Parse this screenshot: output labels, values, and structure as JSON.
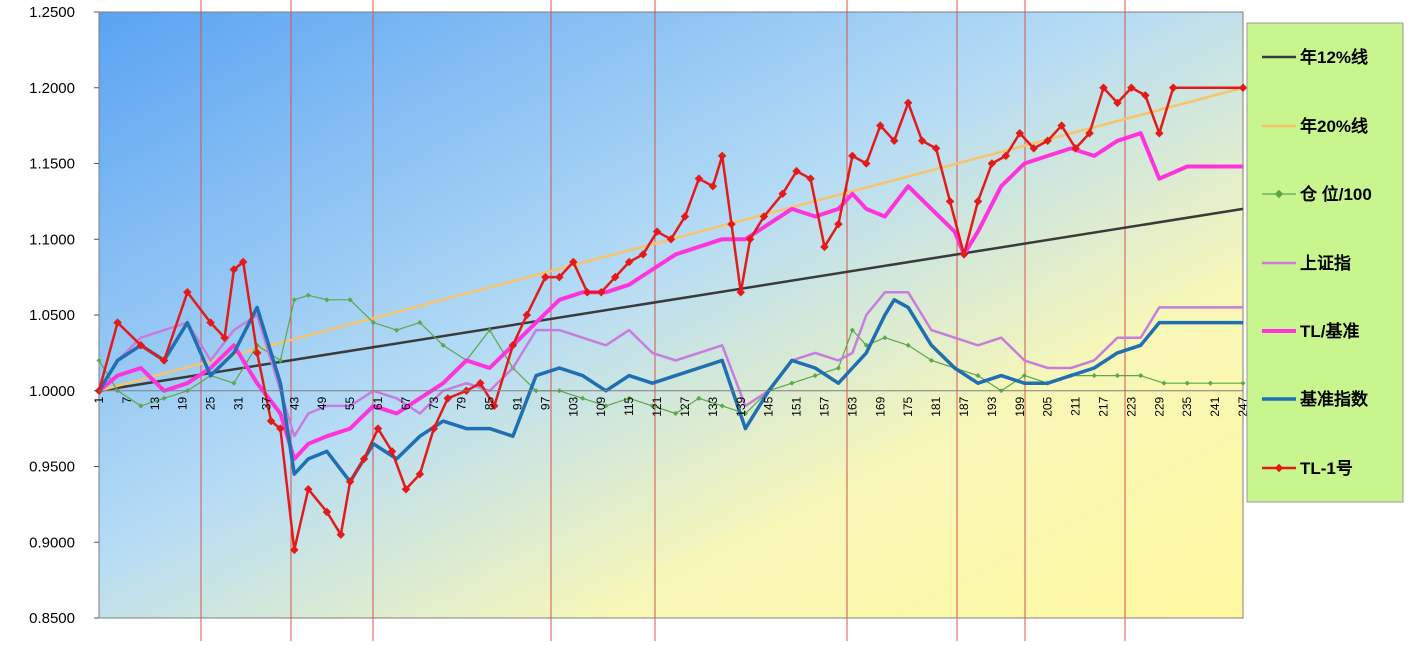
{
  "chart_data": {
    "type": "line",
    "title": "",
    "xlabel": "",
    "ylabel": "",
    "xlim": [
      1,
      247
    ],
    "ylim": [
      0.85,
      1.25
    ],
    "y_ticks": [
      "0.8500",
      "0.9000",
      "0.9500",
      "1.0000",
      "1.0500",
      "1.1000",
      "1.1500",
      "1.2000",
      "1.2500"
    ],
    "x_ticks": [
      "1",
      "7",
      "13",
      "19",
      "25",
      "31",
      "37",
      "43",
      "49",
      "55",
      "61",
      "67",
      "73",
      "79",
      "85",
      "91",
      "97",
      "103",
      "109",
      "115",
      "121",
      "127",
      "133",
      "139",
      "145",
      "151",
      "157",
      "163",
      "169",
      "175",
      "181",
      "187",
      "193",
      "199",
      "205",
      "211",
      "217",
      "223",
      "229",
      "235",
      "241",
      "247"
    ],
    "grid": "vertical red lines",
    "legend_position": "right",
    "background": "gradient blue (top-left) to yellow (bottom-right)",
    "series": [
      {
        "name": "年12%线",
        "color": "#3a3a3a",
        "x": [
          1,
          247
        ],
        "y": [
          1.0,
          1.12
        ]
      },
      {
        "name": "年20%线",
        "color": "#f7c46c",
        "x": [
          1,
          247
        ],
        "y": [
          1.0,
          1.2
        ]
      },
      {
        "name": "仓 位/100",
        "color": "#5aa84a",
        "x": [
          1,
          5,
          10,
          15,
          20,
          25,
          30,
          35,
          40,
          43,
          46,
          50,
          55,
          60,
          65,
          70,
          75,
          80,
          85,
          90,
          95,
          100,
          105,
          110,
          115,
          120,
          125,
          130,
          135,
          140,
          145,
          150,
          155,
          160,
          163,
          166,
          170,
          175,
          180,
          185,
          190,
          195,
          200,
          205,
          210,
          215,
          220,
          225,
          230,
          235,
          240,
          247
        ],
        "y": [
          1.02,
          1.0,
          0.99,
          0.995,
          1.0,
          1.01,
          1.005,
          1.03,
          1.02,
          1.06,
          1.063,
          1.06,
          1.06,
          1.045,
          1.04,
          1.045,
          1.03,
          1.02,
          1.04,
          1.015,
          1.0,
          1.0,
          0.995,
          0.99,
          0.995,
          0.99,
          0.985,
          0.995,
          0.99,
          0.985,
          1.0,
          1.005,
          1.01,
          1.015,
          1.04,
          1.03,
          1.035,
          1.03,
          1.02,
          1.015,
          1.01,
          1.0,
          1.01,
          1.005,
          1.01,
          1.01,
          1.01,
          1.01,
          1.005,
          1.005,
          1.005,
          1.005
        ]
      },
      {
        "name": "上证指",
        "color": "#c77ddd",
        "x": [
          1,
          5,
          10,
          15,
          20,
          25,
          30,
          35,
          40,
          43,
          46,
          50,
          55,
          60,
          65,
          70,
          75,
          80,
          85,
          90,
          95,
          100,
          105,
          110,
          115,
          120,
          125,
          130,
          135,
          140,
          145,
          150,
          155,
          160,
          163,
          166,
          170,
          175,
          180,
          185,
          190,
          195,
          200,
          205,
          210,
          215,
          220,
          225,
          229,
          235,
          240,
          247
        ],
        "y": [
          1.0,
          1.02,
          1.035,
          1.04,
          1.045,
          1.02,
          1.04,
          1.05,
          1.0,
          0.97,
          0.985,
          0.99,
          0.99,
          1.0,
          0.995,
          0.985,
          1.0,
          1.005,
          1.0,
          1.015,
          1.04,
          1.04,
          1.035,
          1.03,
          1.04,
          1.025,
          1.02,
          1.025,
          1.03,
          0.99,
          1.0,
          1.02,
          1.025,
          1.02,
          1.025,
          1.05,
          1.065,
          1.065,
          1.04,
          1.035,
          1.03,
          1.035,
          1.02,
          1.015,
          1.015,
          1.02,
          1.035,
          1.035,
          1.055,
          1.055,
          1.055,
          1.055
        ]
      },
      {
        "name": "TL/基准",
        "color": "#ff33dd",
        "x": [
          1,
          5,
          10,
          15,
          20,
          25,
          30,
          35,
          40,
          43,
          46,
          50,
          55,
          60,
          65,
          70,
          75,
          80,
          85,
          90,
          95,
          100,
          105,
          110,
          115,
          120,
          125,
          130,
          135,
          140,
          145,
          150,
          155,
          160,
          163,
          166,
          170,
          175,
          180,
          185,
          187,
          190,
          195,
          200,
          205,
          210,
          215,
          220,
          225,
          229,
          235,
          240,
          247
        ],
        "y": [
          1.0,
          1.01,
          1.015,
          1.0,
          1.005,
          1.015,
          1.03,
          1.005,
          0.985,
          0.955,
          0.965,
          0.97,
          0.975,
          0.99,
          0.985,
          0.995,
          1.005,
          1.02,
          1.015,
          1.03,
          1.045,
          1.06,
          1.065,
          1.065,
          1.07,
          1.08,
          1.09,
          1.095,
          1.1,
          1.1,
          1.11,
          1.12,
          1.115,
          1.12,
          1.13,
          1.12,
          1.115,
          1.135,
          1.12,
          1.105,
          1.09,
          1.105,
          1.135,
          1.15,
          1.155,
          1.16,
          1.155,
          1.165,
          1.17,
          1.14,
          1.148,
          1.148,
          1.148
        ]
      },
      {
        "name": "基准指数",
        "color": "#1f6fb3",
        "x": [
          1,
          5,
          10,
          15,
          20,
          25,
          30,
          35,
          40,
          43,
          46,
          50,
          55,
          60,
          65,
          70,
          75,
          80,
          85,
          90,
          95,
          100,
          105,
          110,
          115,
          120,
          125,
          130,
          135,
          140,
          145,
          150,
          155,
          160,
          163,
          166,
          170,
          172,
          175,
          180,
          185,
          190,
          195,
          200,
          205,
          210,
          215,
          220,
          225,
          229,
          235,
          240,
          247
        ],
        "y": [
          1.0,
          1.02,
          1.03,
          1.02,
          1.045,
          1.01,
          1.025,
          1.055,
          1.005,
          0.945,
          0.955,
          0.96,
          0.94,
          0.965,
          0.955,
          0.97,
          0.98,
          0.975,
          0.975,
          0.97,
          1.01,
          1.015,
          1.01,
          1.0,
          1.01,
          1.005,
          1.01,
          1.015,
          1.02,
          0.975,
          1.0,
          1.02,
          1.015,
          1.005,
          1.015,
          1.025,
          1.05,
          1.06,
          1.055,
          1.03,
          1.015,
          1.005,
          1.01,
          1.005,
          1.005,
          1.01,
          1.015,
          1.025,
          1.03,
          1.045,
          1.045,
          1.045,
          1.045
        ]
      },
      {
        "name": "TL-1号",
        "color": "#e31a1a",
        "x": [
          1,
          5,
          10,
          15,
          20,
          25,
          28,
          30,
          32,
          35,
          38,
          40,
          43,
          46,
          50,
          53,
          55,
          58,
          61,
          64,
          67,
          70,
          73,
          76,
          80,
          83,
          86,
          90,
          93,
          97,
          100,
          103,
          106,
          109,
          112,
          115,
          118,
          121,
          124,
          127,
          130,
          133,
          135,
          137,
          139,
          141,
          144,
          148,
          151,
          154,
          157,
          160,
          163,
          166,
          169,
          172,
          175,
          178,
          181,
          184,
          187,
          190,
          193,
          196,
          199,
          202,
          205,
          208,
          211,
          214,
          217,
          220,
          223,
          226,
          229,
          232,
          247
        ],
        "y": [
          1.0,
          1.045,
          1.03,
          1.02,
          1.065,
          1.045,
          1.035,
          1.08,
          1.085,
          1.025,
          0.98,
          0.975,
          0.895,
          0.935,
          0.92,
          0.905,
          0.94,
          0.955,
          0.975,
          0.96,
          0.935,
          0.945,
          0.975,
          0.995,
          1.0,
          1.005,
          0.99,
          1.03,
          1.05,
          1.075,
          1.075,
          1.085,
          1.065,
          1.065,
          1.075,
          1.085,
          1.09,
          1.105,
          1.1,
          1.115,
          1.14,
          1.135,
          1.155,
          1.11,
          1.065,
          1.1,
          1.115,
          1.13,
          1.145,
          1.14,
          1.095,
          1.11,
          1.155,
          1.15,
          1.175,
          1.165,
          1.19,
          1.165,
          1.16,
          1.125,
          1.09,
          1.125,
          1.15,
          1.155,
          1.17,
          1.16,
          1.165,
          1.175,
          1.16,
          1.17,
          1.2,
          1.19,
          1.2,
          1.195,
          1.17,
          1.2,
          1.2
        ]
      }
    ]
  }
}
